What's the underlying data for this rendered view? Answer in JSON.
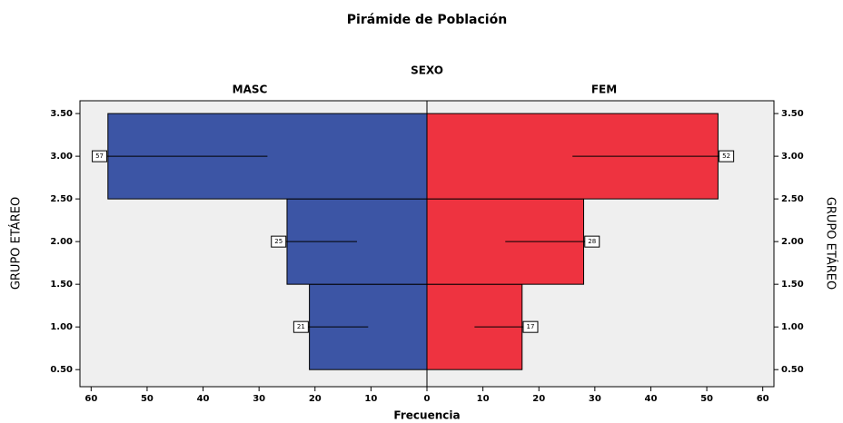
{
  "chart_data": {
    "type": "pyramid",
    "title": "Pirámide de Población",
    "legend_title": "SEXO",
    "x_label": "Frecuencia",
    "y_label": "GRUPO ETÁREO",
    "y": [
      1,
      2,
      3
    ],
    "series": [
      {
        "name": "MASC",
        "color": "#3c55a5",
        "values": [
          21,
          25,
          57
        ]
      },
      {
        "name": "FEM",
        "color": "#ee3340",
        "values": [
          17,
          28,
          52
        ]
      }
    ],
    "xlim": [
      -62,
      62
    ],
    "xticks": [
      {
        "value": -60,
        "label": "60"
      },
      {
        "value": -50,
        "label": "50"
      },
      {
        "value": -40,
        "label": "40"
      },
      {
        "value": -30,
        "label": "30"
      },
      {
        "value": -20,
        "label": "20"
      },
      {
        "value": -10,
        "label": "10"
      },
      0,
      10,
      20,
      30,
      40,
      50,
      60
    ],
    "ylim": [
      0.3,
      3.65
    ],
    "yticks": [
      {
        "value": 0.5,
        "label": "0.50"
      },
      {
        "value": 1,
        "label": "1.00"
      },
      {
        "value": 1.5,
        "label": "1.50"
      },
      {
        "value": 2,
        "label": "2.00"
      },
      {
        "value": 2.5,
        "label": "2.50"
      },
      {
        "value": 3,
        "label": "3.00"
      },
      {
        "value": 3.5,
        "label": "3.50"
      }
    ]
  }
}
